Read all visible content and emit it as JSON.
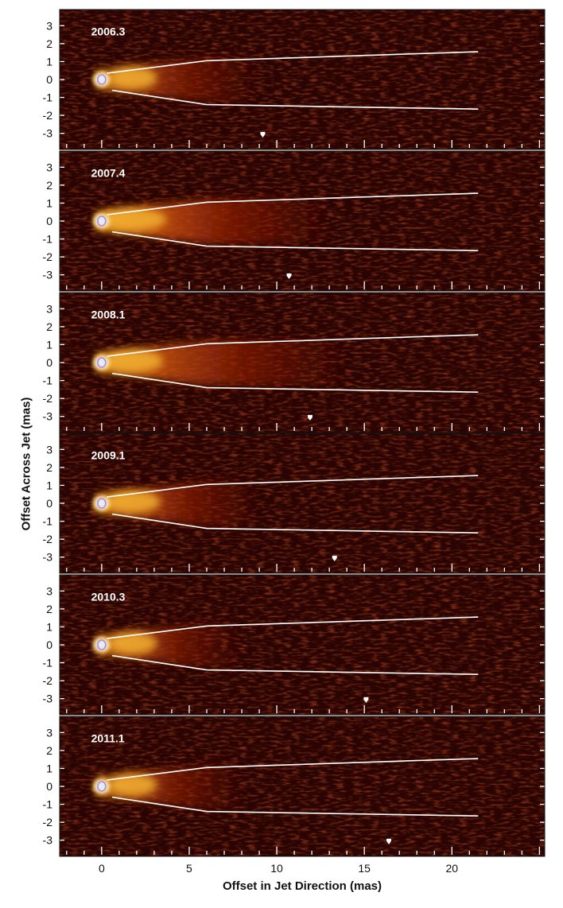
{
  "figure": {
    "ylabel": "Offset Across Jet (mas)",
    "xlabel": "Offset in Jet Direction (mas)"
  },
  "chart_data": {
    "type": "heatmap",
    "xlabel": "Offset in Jet Direction (mas)",
    "ylabel": "Offset Across Jet (mas)",
    "xlim": [
      -2.4,
      25.3
    ],
    "ylim": [
      -3.9,
      3.9
    ],
    "x_ticks": [
      0,
      5,
      10,
      15,
      20
    ],
    "y_ticks": [
      3,
      2,
      1,
      0,
      -1,
      -2,
      -3
    ],
    "colors": {
      "background": "#2a0402",
      "mid": "#8a1a05",
      "bright": "#f0a020",
      "core": "#c8e8ff",
      "lines": "#ffffff"
    },
    "jet_edge_upper": [
      {
        "x": 0.3,
        "y": 0.35
      },
      {
        "x": 6,
        "y": 1.05
      },
      {
        "x": 21.5,
        "y": 1.55
      }
    ],
    "jet_edge_lower": [
      {
        "x": 0.6,
        "y": -0.6
      },
      {
        "x": 6,
        "y": -1.4
      },
      {
        "x": 21.5,
        "y": -1.65
      }
    ],
    "panels": [
      {
        "epoch": "2006.3",
        "marker_x": 9.2,
        "jet_extent": 9,
        "brightness": 0.6
      },
      {
        "epoch": "2007.4",
        "marker_x": 10.7,
        "jet_extent": 13,
        "brightness": 1.0
      },
      {
        "epoch": "2008.1",
        "marker_x": 11.9,
        "jet_extent": 14,
        "brightness": 0.85
      },
      {
        "epoch": "2009.1",
        "marker_x": 13.3,
        "jet_extent": 9,
        "brightness": 0.75
      },
      {
        "epoch": "2010.3",
        "marker_x": 15.1,
        "jet_extent": 8,
        "brightness": 0.6
      },
      {
        "epoch": "2011.1",
        "marker_x": 16.4,
        "jet_extent": 8,
        "brightness": 0.6
      }
    ]
  }
}
